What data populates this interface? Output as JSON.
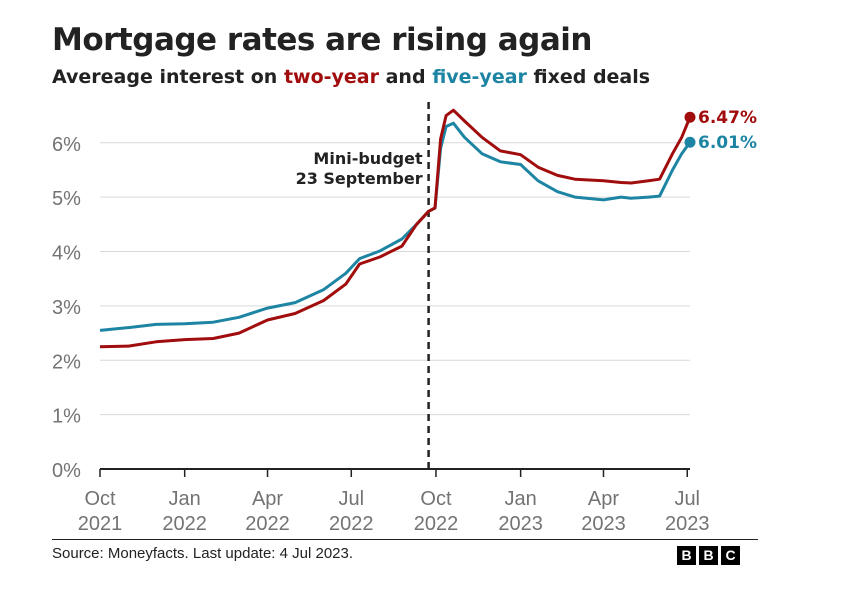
{
  "header": {
    "title": "Mortgage rates are rising again",
    "subtitle_prefix": "Avereage interest on ",
    "subtitle_two": "two-year",
    "subtitle_mid": " and ",
    "subtitle_five": "five-year",
    "subtitle_suffix": " fixed deals"
  },
  "footer": {
    "source": "Source: Moneyfacts. Last update: 4 Jul 2023.",
    "logo_letters": [
      "B",
      "B",
      "C"
    ]
  },
  "colors": {
    "two_year": "#a10d0d",
    "five_year": "#1d85a3",
    "grid": "#d9d9d9",
    "axis": "#222222",
    "tick_text": "#737373"
  },
  "chart_data": {
    "type": "line",
    "title": "Mortgage rates are rising again",
    "xlabel": "",
    "ylabel": "",
    "ylim": [
      0,
      6.75
    ],
    "xlim": [
      "2021-10-01",
      "2023-07-04"
    ],
    "y_ticks": [
      0,
      1,
      2,
      3,
      4,
      5,
      6
    ],
    "y_tick_labels": [
      "0%",
      "1%",
      "2%",
      "3%",
      "4%",
      "5%",
      "6%"
    ],
    "x_ticks": [
      {
        "date": "2021-10-01",
        "line1": "Oct",
        "line2": "2021"
      },
      {
        "date": "2022-01-01",
        "line1": "Jan",
        "line2": "2022"
      },
      {
        "date": "2022-04-01",
        "line1": "Apr",
        "line2": "2022"
      },
      {
        "date": "2022-07-01",
        "line1": "Jul",
        "line2": "2022"
      },
      {
        "date": "2022-10-01",
        "line1": "Oct",
        "line2": "2022"
      },
      {
        "date": "2023-01-01",
        "line1": "Jan",
        "line2": "2023"
      },
      {
        "date": "2023-04-01",
        "line1": "Apr",
        "line2": "2023"
      },
      {
        "date": "2023-07-01",
        "line1": "Jul",
        "line2": "2023"
      }
    ],
    "grid": true,
    "annotation": {
      "date": "2022-09-23",
      "line1": "Mini-budget",
      "line2": "23 September"
    },
    "series": [
      {
        "name": "two-year",
        "end_label": "6.47%",
        "points": [
          [
            "2021-10-01",
            2.25
          ],
          [
            "2021-11-01",
            2.26
          ],
          [
            "2021-12-01",
            2.34
          ],
          [
            "2022-01-01",
            2.38
          ],
          [
            "2022-02-01",
            2.4
          ],
          [
            "2022-03-01",
            2.5
          ],
          [
            "2022-04-01",
            2.74
          ],
          [
            "2022-05-01",
            2.86
          ],
          [
            "2022-06-01",
            3.1
          ],
          [
            "2022-06-25",
            3.4
          ],
          [
            "2022-07-10",
            3.77
          ],
          [
            "2022-08-01",
            3.9
          ],
          [
            "2022-08-25",
            4.1
          ],
          [
            "2022-09-10",
            4.5
          ],
          [
            "2022-09-23",
            4.74
          ],
          [
            "2022-09-30",
            4.8
          ],
          [
            "2022-10-06",
            6.07
          ],
          [
            "2022-10-12",
            6.5
          ],
          [
            "2022-10-20",
            6.6
          ],
          [
            "2022-11-01",
            6.4
          ],
          [
            "2022-11-20",
            6.1
          ],
          [
            "2022-12-10",
            5.85
          ],
          [
            "2023-01-01",
            5.78
          ],
          [
            "2023-01-20",
            5.55
          ],
          [
            "2023-02-10",
            5.4
          ],
          [
            "2023-03-01",
            5.33
          ],
          [
            "2023-04-01",
            5.3
          ],
          [
            "2023-04-20",
            5.27
          ],
          [
            "2023-05-01",
            5.26
          ],
          [
            "2023-05-20",
            5.3
          ],
          [
            "2023-06-01",
            5.33
          ],
          [
            "2023-06-15",
            5.8
          ],
          [
            "2023-06-25",
            6.1
          ],
          [
            "2023-07-04",
            6.47
          ]
        ]
      },
      {
        "name": "five-year",
        "end_label": "6.01%",
        "points": [
          [
            "2021-10-01",
            2.55
          ],
          [
            "2021-11-01",
            2.6
          ],
          [
            "2021-12-01",
            2.66
          ],
          [
            "2022-01-01",
            2.67
          ],
          [
            "2022-02-01",
            2.7
          ],
          [
            "2022-03-01",
            2.79
          ],
          [
            "2022-04-01",
            2.96
          ],
          [
            "2022-05-01",
            3.06
          ],
          [
            "2022-06-01",
            3.3
          ],
          [
            "2022-06-25",
            3.6
          ],
          [
            "2022-07-10",
            3.87
          ],
          [
            "2022-08-01",
            4.01
          ],
          [
            "2022-08-25",
            4.23
          ],
          [
            "2022-09-10",
            4.5
          ],
          [
            "2022-09-23",
            4.74
          ],
          [
            "2022-09-30",
            4.8
          ],
          [
            "2022-10-06",
            5.9
          ],
          [
            "2022-10-12",
            6.3
          ],
          [
            "2022-10-20",
            6.36
          ],
          [
            "2022-11-01",
            6.1
          ],
          [
            "2022-11-20",
            5.8
          ],
          [
            "2022-12-10",
            5.65
          ],
          [
            "2023-01-01",
            5.6
          ],
          [
            "2023-01-20",
            5.3
          ],
          [
            "2023-02-10",
            5.1
          ],
          [
            "2023-03-01",
            5.0
          ],
          [
            "2023-04-01",
            4.95
          ],
          [
            "2023-04-20",
            5.0
          ],
          [
            "2023-05-01",
            4.98
          ],
          [
            "2023-05-20",
            5.0
          ],
          [
            "2023-06-01",
            5.02
          ],
          [
            "2023-06-15",
            5.5
          ],
          [
            "2023-06-25",
            5.8
          ],
          [
            "2023-07-04",
            6.01
          ]
        ]
      }
    ]
  }
}
